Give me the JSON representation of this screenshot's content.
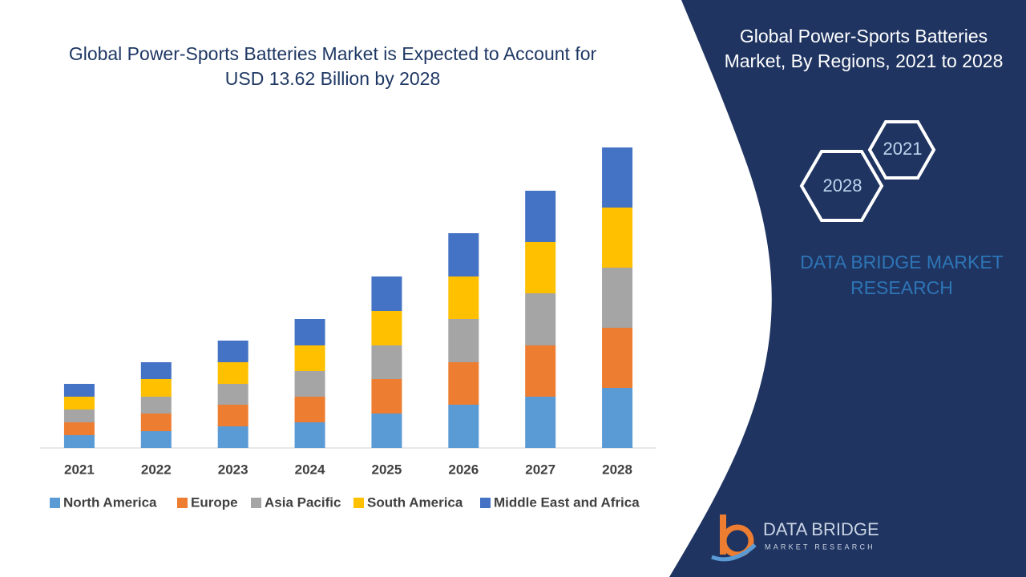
{
  "chart_data": {
    "type": "stacked_bar",
    "title": "Global Power-Sports Batteries Market is Expected to Account for USD 13.62 Billion by 2028",
    "categories": [
      "2021",
      "2022",
      "2023",
      "2024",
      "2025",
      "2026",
      "2027",
      "2028"
    ],
    "series": [
      {
        "name": "North America",
        "color": "#5b9bd5",
        "values": [
          16,
          21,
          27,
          32,
          43,
          54,
          64,
          75
        ]
      },
      {
        "name": "Europe",
        "color": "#ed7d31",
        "values": [
          16,
          22,
          27,
          32,
          43,
          53,
          64,
          75
        ]
      },
      {
        "name": "Asia Pacific",
        "color": "#a5a5a5",
        "values": [
          16,
          21,
          26,
          32,
          42,
          54,
          65,
          75
        ]
      },
      {
        "name": "South America",
        "color": "#ffc000",
        "values": [
          16,
          22,
          27,
          32,
          43,
          53,
          64,
          75
        ]
      },
      {
        "name": "Middle East and Africa",
        "color": "#4472c4",
        "values": [
          16,
          21,
          27,
          33,
          43,
          54,
          64,
          75
        ]
      }
    ],
    "ylim": [
      0,
      400
    ],
    "grid": false,
    "legend": "bottom"
  },
  "panel": {
    "title": "Global Power-Sports Batteries Market, By Regions, 2021 to 2028",
    "hex_start": "2021",
    "hex_end": "2028",
    "brand": "DATA BRIDGE MARKET RESEARCH",
    "logo_name": "DATA BRIDGE",
    "logo_tagline": "MARKET RESEARCH"
  }
}
